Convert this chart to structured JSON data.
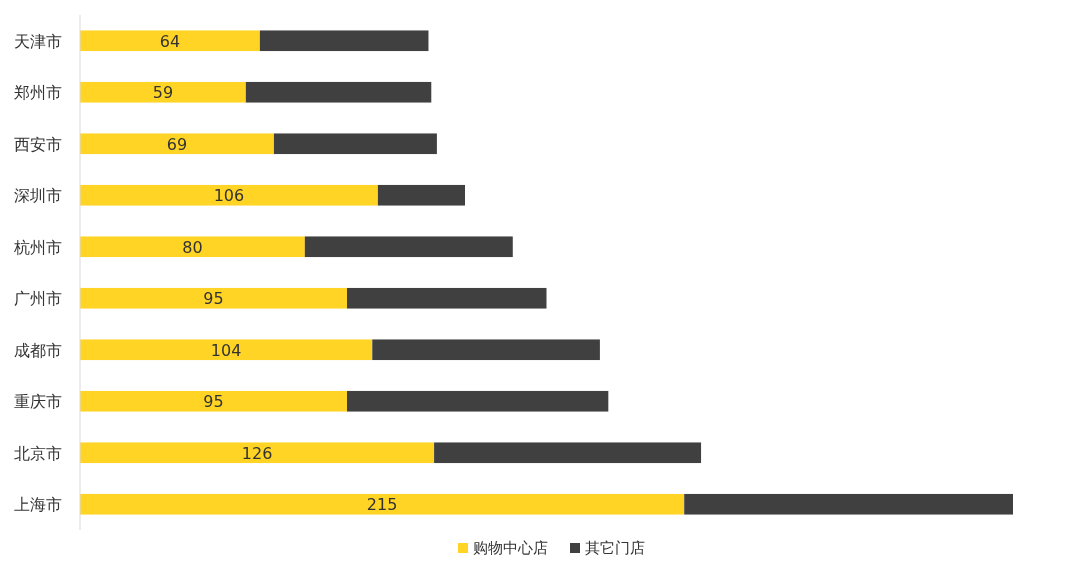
{
  "chart_data": {
    "type": "bar",
    "orientation": "horizontal",
    "stacked": true,
    "legend": "bottom",
    "categories": [
      "天津市",
      "郑州市",
      "西安市",
      "深圳市",
      "杭州市",
      "广州市",
      "成都市",
      "重庆市",
      "北京市",
      "上海市"
    ],
    "series": [
      {
        "name": "购物中心店",
        "color": "#ffd424",
        "values": [
          64,
          59,
          69,
          106,
          80,
          95,
          104,
          95,
          126,
          215
        ],
        "value_labels": [
          "64",
          "59",
          "69",
          "106",
          "80",
          "95",
          "104",
          "95",
          "126",
          "215"
        ]
      },
      {
        "name": "其它门店",
        "color": "#404040",
        "values": [
          60,
          66,
          58,
          31,
          74,
          71,
          81,
          93,
          95,
          117
        ]
      }
    ]
  }
}
